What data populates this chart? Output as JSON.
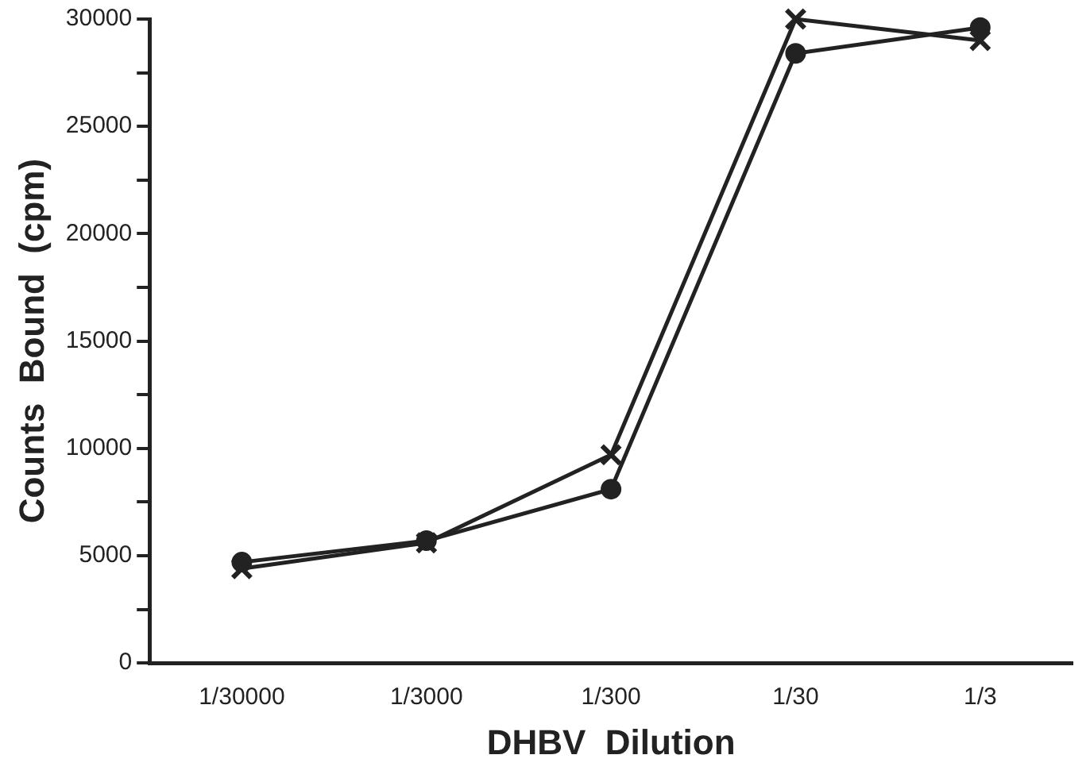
{
  "chart_data": {
    "type": "line",
    "xlabel": "DHBV  Dilution",
    "ylabel": "Counts  Bound  (cpm)",
    "categories": [
      "1/30000",
      "1/3000",
      "1/300",
      "1/30",
      "1/3"
    ],
    "ylim": [
      0,
      30000
    ],
    "yticks": [
      0,
      {
        "value": 2500,
        "label": null
      },
      5000,
      {
        "value": 7500,
        "label": null
      },
      10000,
      {
        "value": 12500,
        "label": null
      },
      15000,
      {
        "value": 17500,
        "label": null
      },
      20000,
      {
        "value": 22500,
        "label": null
      },
      25000,
      {
        "value": 27500,
        "label": null
      },
      30000
    ],
    "grid": false,
    "legend": false,
    "line_style": "solid",
    "series": [
      {
        "color": "#222222",
        "marker": "circle",
        "values": [
          4700,
          5700,
          8100,
          28400,
          29600
        ]
      },
      {
        "color": "#222222",
        "marker": "cross",
        "values": [
          4400,
          5600,
          9700,
          30000,
          29000
        ]
      }
    ]
  }
}
